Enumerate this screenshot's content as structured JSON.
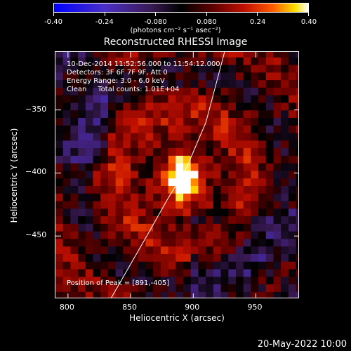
{
  "chart_data": {
    "type": "heatmap",
    "title": "Reconstructed RHESSI Image",
    "xlabel": "Heliocentric X (arcsec)",
    "ylabel": "Heliocentric Y (arcsec)",
    "xlim": [
      790,
      985
    ],
    "ylim": [
      -500,
      -304
    ],
    "x_ticks": [
      800,
      850,
      900,
      950
    ],
    "y_ticks": [
      -350,
      -400,
      -450
    ],
    "colorbar": {
      "ticks": [
        "-0.40",
        "-0.24",
        "-0.080",
        "0.080",
        "0.24",
        "0.40"
      ],
      "range": [
        -0.4,
        0.4
      ],
      "units": "(photons cm⁻² s⁻¹ asec⁻²)"
    },
    "annotations": [
      "10-Dec-2014 11:52:56.000 to 11:54:12.000",
      "Detectors: 3F 6F 7F 9F, Att 0",
      "Energy Range: 3.0 - 6.0 keV",
      "Clean     Total counts: 1.01E+04",
      "Position of Peak = [891,-405]"
    ],
    "peak_position": [
      891,
      -405
    ],
    "limb_curve": [
      [
        834,
        -500
      ],
      [
        860,
        -455
      ],
      [
        880,
        -420
      ],
      [
        895,
        -395
      ],
      [
        910,
        -360
      ],
      [
        925,
        -304
      ]
    ]
  },
  "timestamp": "20-May-2022 10:00"
}
